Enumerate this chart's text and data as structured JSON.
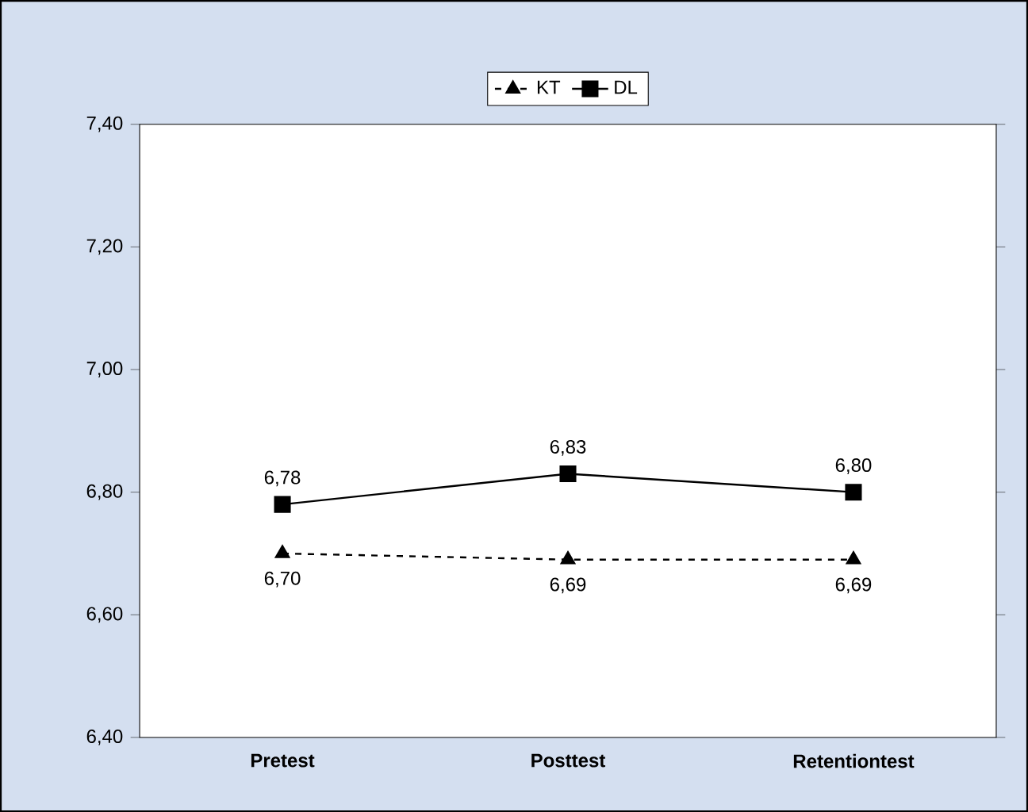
{
  "chart_data": {
    "type": "line",
    "categories": [
      "Pretest",
      "Posttest",
      "Retentiontest"
    ],
    "series": [
      {
        "name": "KT",
        "color": "#000000",
        "values": [
          6.7,
          6.69,
          6.69
        ],
        "value_labels": [
          "6,70",
          "6,69",
          "6,69"
        ],
        "marker": "triangle",
        "line_style": "dashed"
      },
      {
        "name": "DL",
        "color": "#000000",
        "values": [
          6.78,
          6.83,
          6.8
        ],
        "value_labels": [
          "6,78",
          "6,83",
          "6,80"
        ],
        "marker": "square",
        "line_style": "solid"
      }
    ],
    "ylim": [
      6.4,
      7.4
    ],
    "yticks": [
      {
        "value": 6.4,
        "label": "6,40"
      },
      {
        "value": 6.6,
        "label": "6,60"
      },
      {
        "value": 6.8,
        "label": "6,80"
      },
      {
        "value": 7.0,
        "label": "7,00"
      },
      {
        "value": 7.2,
        "label": "7,20"
      },
      {
        "value": 7.4,
        "label": "7,40"
      }
    ],
    "legend": "top",
    "grid": false
  }
}
